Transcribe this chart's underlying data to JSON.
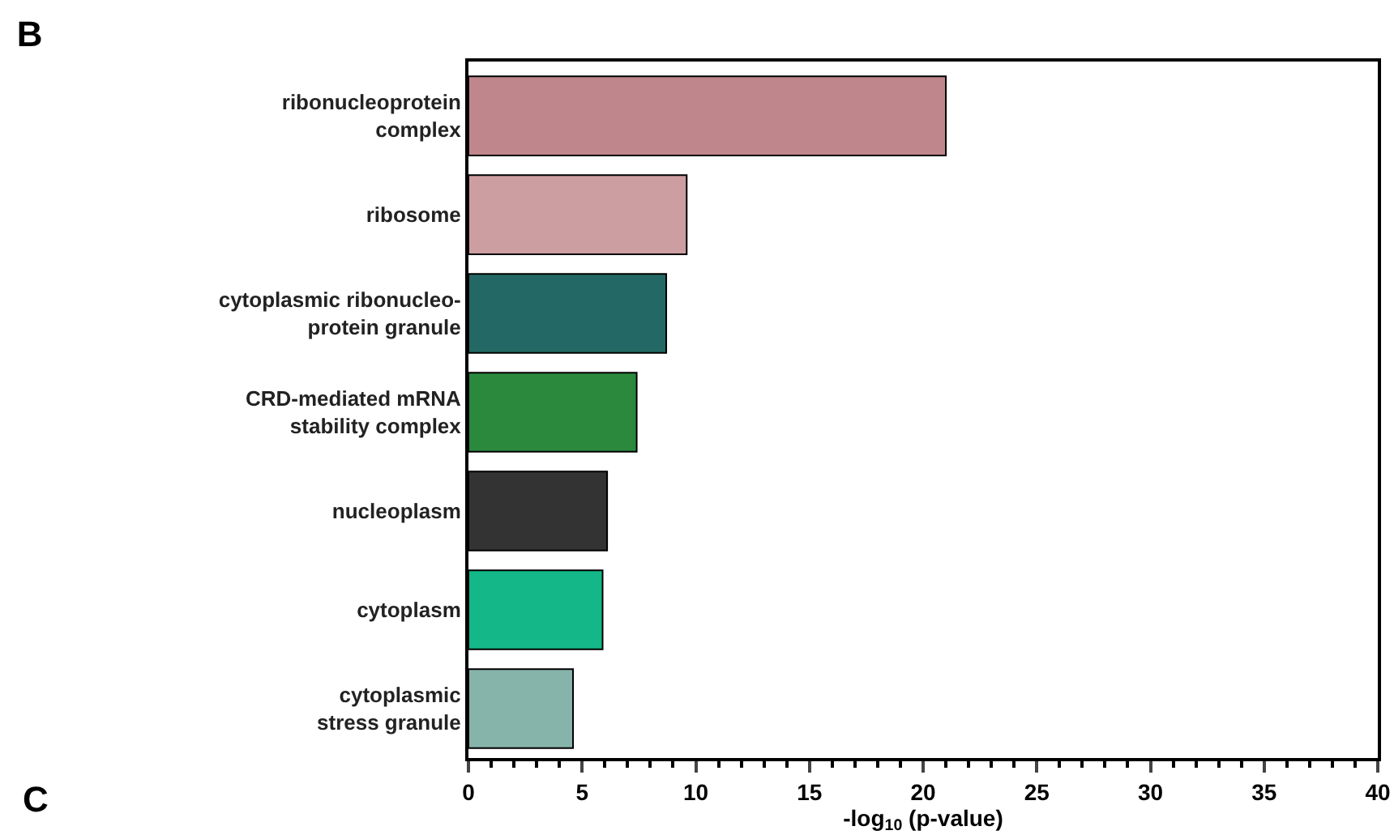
{
  "chart_data": {
    "type": "bar",
    "orientation": "horizontal",
    "title": "B",
    "categories": [
      "ribonucleoprotein\ncomplex",
      "ribosome",
      "cytoplasmic ribonucleo-\nprotein granule",
      "CRD-mediated mRNA\nstability complex",
      "nucleoplasm",
      "cytoplasm",
      "cytoplasmic\nstress granule"
    ],
    "values": [
      21,
      9.6,
      8.7,
      7.4,
      6.1,
      5.9,
      4.6
    ],
    "colors": [
      "#bf878b",
      "#cd9ea1",
      "#236864",
      "#2b893e",
      "#333333",
      "#14b888",
      "#86b3aa"
    ],
    "xlabel": "-log$_{10}$ (p-value)",
    "xlim": [
      0,
      40
    ],
    "xticks": [
      0,
      {
        "value": 1,
        "label": null
      },
      {
        "value": 2,
        "label": null
      },
      {
        "value": 3,
        "label": null
      },
      {
        "value": 4,
        "label": null
      },
      5,
      {
        "value": 6,
        "label": null
      },
      {
        "value": 7,
        "label": null
      },
      {
        "value": 8,
        "label": null
      },
      {
        "value": 9,
        "label": null
      },
      10,
      {
        "value": 11,
        "label": null
      },
      {
        "value": 12,
        "label": null
      },
      {
        "value": 13,
        "label": null
      },
      {
        "value": 14,
        "label": null
      },
      15,
      {
        "value": 16,
        "label": null
      },
      {
        "value": 17,
        "label": null
      },
      {
        "value": 18,
        "label": null
      },
      {
        "value": 19,
        "label": null
      },
      20,
      {
        "value": 21,
        "label": null
      },
      {
        "value": 22,
        "label": null
      },
      {
        "value": 23,
        "label": null
      },
      {
        "value": 24,
        "label": null
      },
      25,
      {
        "value": 26,
        "label": null
      },
      {
        "value": 27,
        "label": null
      },
      {
        "value": 28,
        "label": null
      },
      {
        "value": 29,
        "label": null
      },
      30,
      {
        "value": 31,
        "label": null
      },
      {
        "value": 32,
        "label": null
      },
      {
        "value": 33,
        "label": null
      },
      {
        "value": 34,
        "label": null
      },
      35,
      {
        "value": 36,
        "label": null
      },
      {
        "value": 37,
        "label": null
      },
      {
        "value": 38,
        "label": null
      },
      {
        "value": 39,
        "label": null
      },
      40
    ],
    "annotations": [
      "C"
    ],
    "data_labels": false
  }
}
